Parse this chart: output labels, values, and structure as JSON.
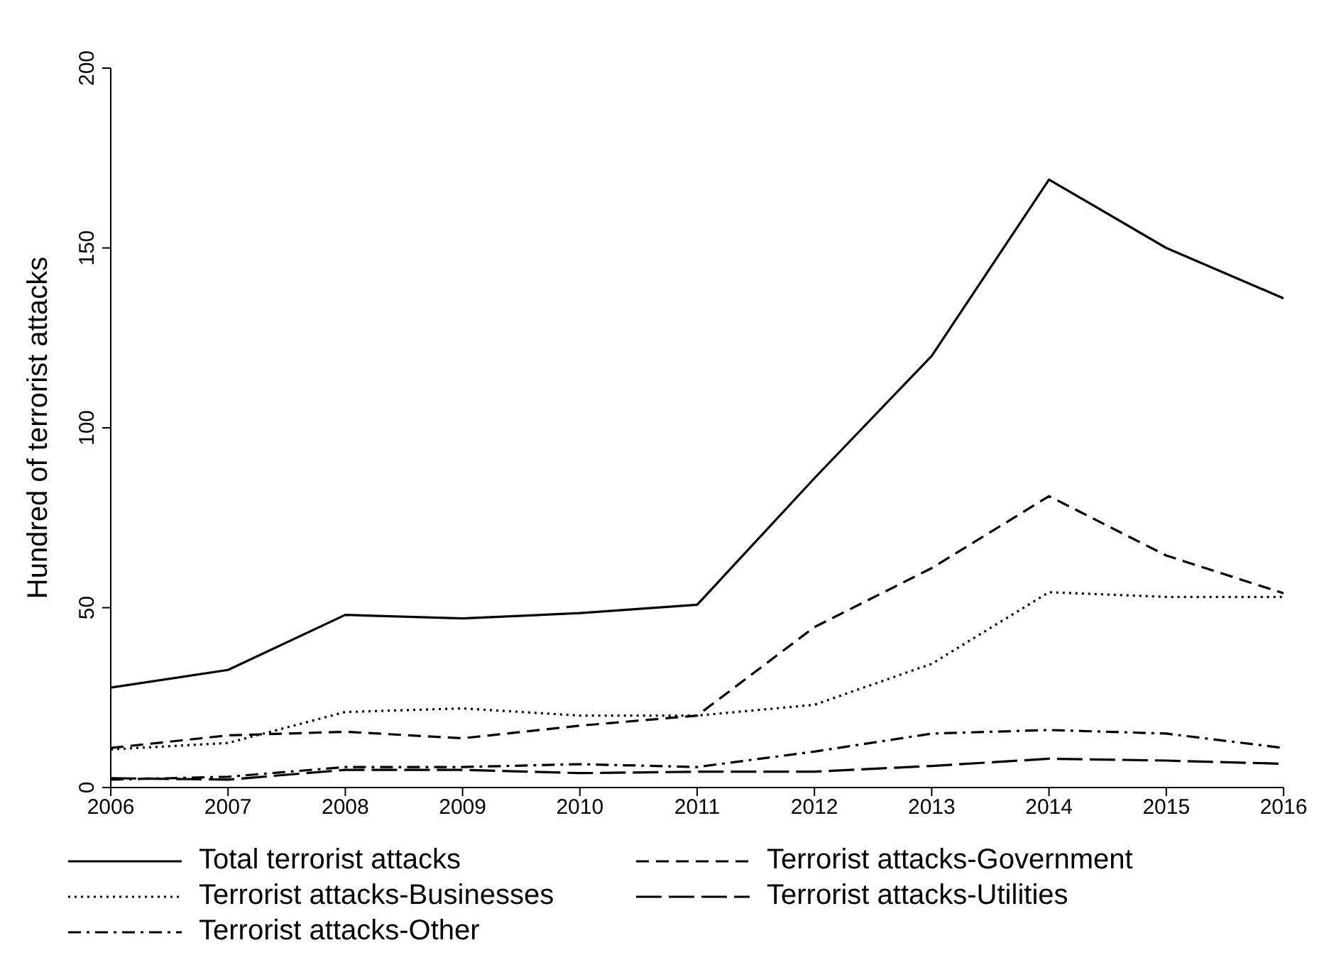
{
  "chart_data": {
    "type": "line",
    "ylabel": "Hundred of terrorist attacks",
    "x": [
      2006,
      2007,
      2008,
      2009,
      2010,
      2011,
      2012,
      2013,
      2014,
      2015,
      2016
    ],
    "xlim": [
      2006,
      2016
    ],
    "xticks": [
      2006,
      2007,
      2008,
      2009,
      2010,
      2011,
      2012,
      2013,
      2014,
      2015,
      2016
    ],
    "ylim": [
      0,
      200
    ],
    "yticks": [
      0,
      50,
      100,
      150,
      200
    ],
    "grid": false,
    "legend": "bottom",
    "marker": "none",
    "series": [
      {
        "name": "Total terrorist attacks",
        "color": "#000000",
        "line_style": "solid",
        "values": [
          27.8,
          32.7,
          48,
          47,
          48.5,
          50.8,
          86,
          120,
          169,
          150,
          136
        ]
      },
      {
        "name": "Terrorist attacks-Government",
        "color": "#000000",
        "line_style": "dashed",
        "values": [
          11,
          14.5,
          15.5,
          13.7,
          17.2,
          20,
          44.6,
          61,
          81,
          64.5,
          54
        ]
      },
      {
        "name": "Terrorist attacks-Businesses",
        "color": "#000000",
        "line_style": "dotted",
        "values": [
          10.6,
          12.4,
          21,
          22,
          20,
          20,
          23,
          34.4,
          54.3,
          53,
          53
        ]
      },
      {
        "name": "Terrorist attacks-Utilities",
        "color": "#000000",
        "line_style": "longdash",
        "values": [
          2.6,
          2.2,
          4.9,
          4.9,
          4,
          4.4,
          4.4,
          6,
          8,
          7.5,
          6.6
        ]
      },
      {
        "name": "Terrorist attacks-Other",
        "color": "#000000",
        "line_style": "dashdot",
        "values": [
          2.2,
          3,
          5.7,
          5.7,
          6.5,
          5.7,
          10,
          15,
          16,
          15,
          11
        ]
      }
    ]
  }
}
